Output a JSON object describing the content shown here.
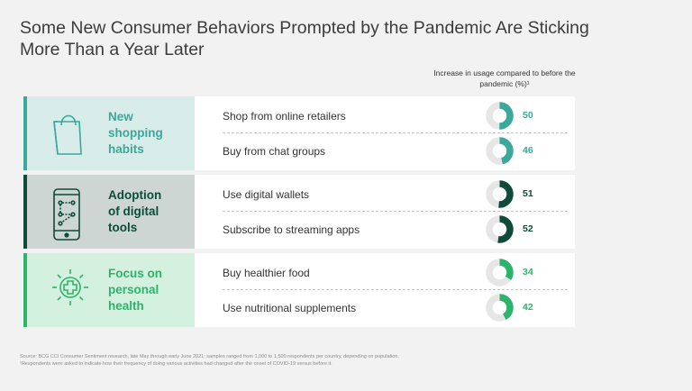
{
  "title": "Some New Consumer Behaviors Prompted by the Pandemic Are Sticking More Than a Year Later",
  "column_header": "Increase in usage compared to before the pandemic (%)¹",
  "groups": [
    {
      "label": "New\nshopping\nhabits",
      "icon": "shopping-bag-icon",
      "bg": "#d8ece9",
      "accent": "#3aa89a",
      "text_color": "#3aa89a",
      "items": [
        {
          "label": "Shop from online retailers",
          "value": "50"
        },
        {
          "label": "Buy from chat groups",
          "value": "46"
        }
      ]
    },
    {
      "label": "Adoption\nof digital\ntools",
      "icon": "smartphone-icon",
      "bg": "#cdd6d2",
      "accent": "#0f4a3a",
      "text_color": "#0f4a3a",
      "items": [
        {
          "label": "Use digital wallets",
          "value": "51"
        },
        {
          "label": "Subscribe to streaming apps",
          "value": "52"
        }
      ]
    },
    {
      "label": "Focus on\npersonal\nhealth",
      "icon": "health-cross-icon",
      "bg": "#d4f0df",
      "accent": "#2db36a",
      "text_color": "#2db36a",
      "items": [
        {
          "label": "Buy healthier food",
          "value": "34"
        },
        {
          "label": "Use nutritional supplements",
          "value": "42"
        }
      ]
    }
  ],
  "footnote": "Source: BCG CCI Consumer Sentiment research, late May through early June 2021; samples ranged from 1,000 to 1,500 respondents per country, depending on population.\n¹Respondents were asked to indicate how their frequency of doing various activities had changed after the onset of COVID-19 versus before it.",
  "chart_data": {
    "type": "pie",
    "title": "Some New Consumer Behaviors Prompted by the Pandemic Are Sticking More Than a Year Later",
    "unit": "%",
    "categories": [
      "Shop from online retailers",
      "Buy from chat groups",
      "Use digital wallets",
      "Subscribe to streaming apps",
      "Buy healthier food",
      "Use nutritional supplements"
    ],
    "groups": [
      "New shopping habits",
      "New shopping habits",
      "Adoption of digital tools",
      "Adoption of digital tools",
      "Focus on personal health",
      "Focus on personal health"
    ],
    "values": [
      50,
      46,
      51,
      52,
      34,
      42
    ],
    "range": [
      0,
      100
    ]
  }
}
